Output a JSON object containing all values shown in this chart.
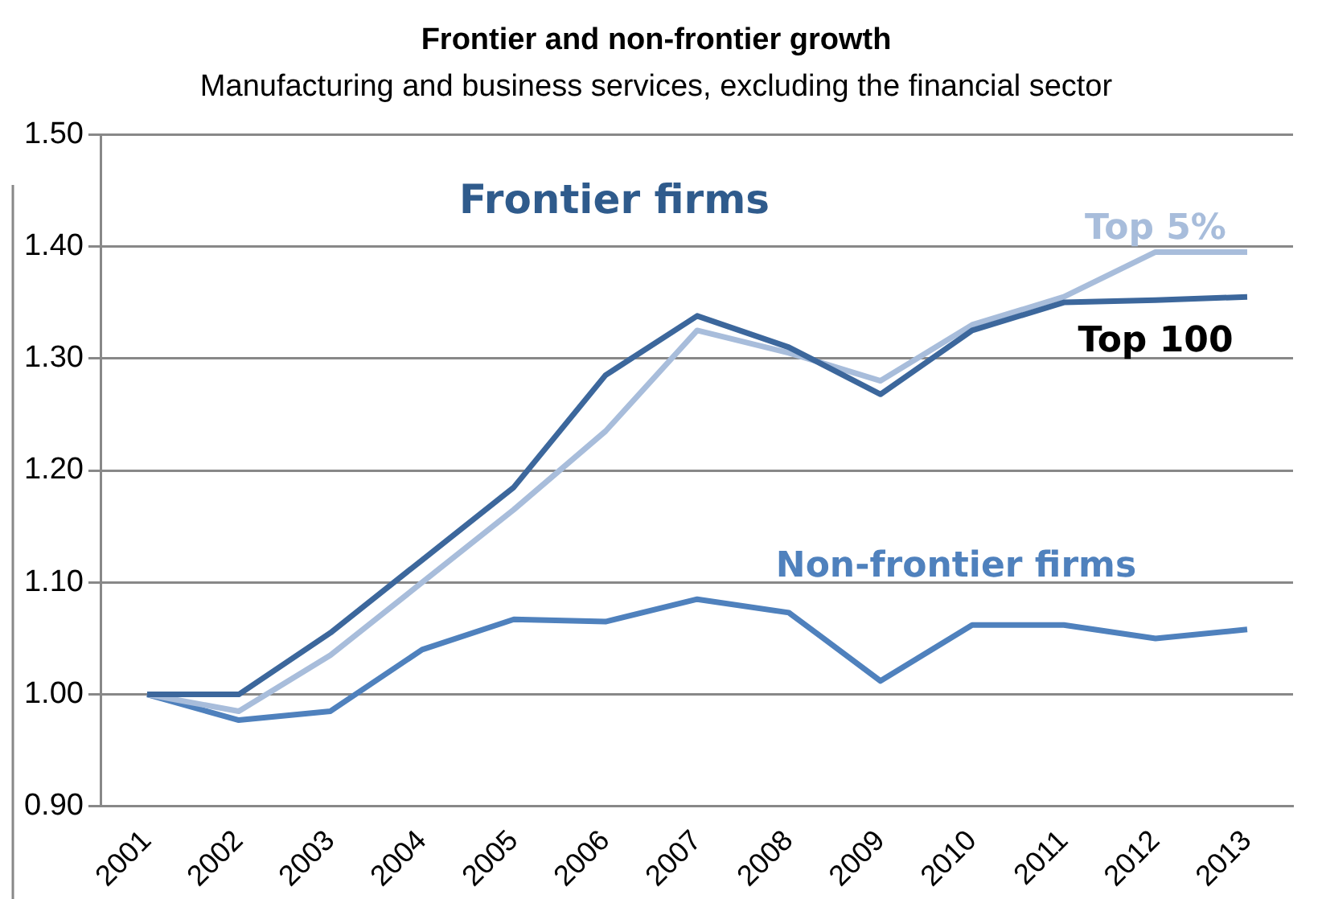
{
  "chart_data": {
    "type": "line",
    "title": "Frontier and non-frontier growth",
    "subtitle": "Manufacturing and business services, excluding the financial sector",
    "categories": [
      "2001",
      "2002",
      "2003",
      "2004",
      "2005",
      "2006",
      "2007",
      "2008",
      "2009",
      "2010",
      "2011",
      "2012",
      "2013"
    ],
    "series": [
      {
        "name": "Top 100",
        "color": "#3c679c",
        "values": [
          1.0,
          1.0,
          1.055,
          1.12,
          1.185,
          1.285,
          1.338,
          1.31,
          1.268,
          1.325,
          1.35,
          1.352,
          1.355
        ]
      },
      {
        "name": "Top 5%",
        "color": "#a8bddb",
        "values": [
          1.0,
          0.985,
          1.035,
          1.1,
          1.165,
          1.235,
          1.325,
          1.305,
          1.28,
          1.33,
          1.355,
          1.395,
          1.395
        ]
      },
      {
        "name": "Non-frontier firms",
        "color": "#4f81bd",
        "values": [
          1.0,
          0.977,
          0.985,
          1.04,
          1.067,
          1.065,
          1.085,
          1.073,
          1.012,
          1.062,
          1.062,
          1.05,
          1.058
        ]
      }
    ],
    "annotations": [
      "Frontier firms"
    ],
    "ylim": [
      0.9,
      1.5
    ],
    "yticks": [
      {
        "value": 0.9,
        "label": "0.90"
      },
      {
        "value": 1.0,
        "label": "1.00"
      },
      {
        "value": 1.1,
        "label": "1.10"
      },
      {
        "value": 1.2,
        "label": "1.20"
      },
      {
        "value": 1.3,
        "label": "1.30"
      },
      {
        "value": 1.4,
        "label": "1.40"
      },
      {
        "value": 1.5,
        "label": "1.50"
      }
    ],
    "grid": "y",
    "legend": false,
    "marker": "none",
    "line_style": "solid"
  }
}
